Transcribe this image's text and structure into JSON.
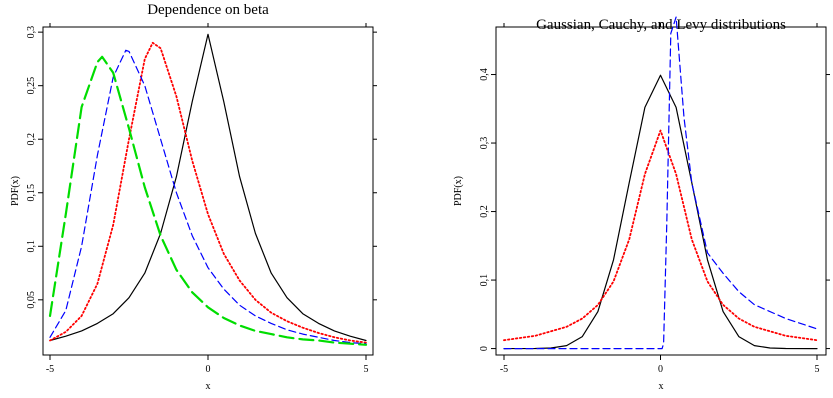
{
  "chart_data": [
    {
      "type": "line",
      "title": "Dependence on beta",
      "xlabel": "x",
      "ylabel": "PDF(x)",
      "xlim": [
        -5,
        5
      ],
      "ylim": [
        0.005,
        0.302
      ],
      "xticks": [
        -5,
        0,
        5
      ],
      "yticks": [
        0.05,
        0.1,
        0.15,
        0.2,
        0.25,
        0.3
      ],
      "ytick_labels": [
        "0,05",
        "0,1",
        "0,15",
        "0,2",
        "0,25",
        "0,3"
      ],
      "grid": false,
      "series": [
        {
          "color": "#000000",
          "style": "solid",
          "x": [
            -5,
            -4.5,
            -4,
            -3.5,
            -3,
            -2.5,
            -2,
            -1.5,
            -1,
            -0.5,
            0,
            0.5,
            1,
            1.5,
            2,
            2.5,
            3,
            3.5,
            4,
            4.5,
            5
          ],
          "y": [
            0.012,
            0.016,
            0.021,
            0.028,
            0.037,
            0.052,
            0.075,
            0.112,
            0.165,
            0.235,
            0.298,
            0.235,
            0.165,
            0.112,
            0.075,
            0.052,
            0.037,
            0.028,
            0.021,
            0.016,
            0.012
          ]
        },
        {
          "color": "#ff0000",
          "style": "dotted",
          "x": [
            -5,
            -4.5,
            -4,
            -3.5,
            -3,
            -2.5,
            -2,
            -1.75,
            -1.5,
            -1,
            -0.5,
            0,
            0.5,
            1,
            1.5,
            2,
            2.5,
            3,
            3.5,
            4,
            4.5,
            5
          ],
          "y": [
            0.012,
            0.02,
            0.035,
            0.065,
            0.12,
            0.2,
            0.275,
            0.29,
            0.285,
            0.24,
            0.18,
            0.13,
            0.093,
            0.068,
            0.05,
            0.038,
            0.03,
            0.024,
            0.019,
            0.015,
            0.012,
            0.01
          ]
        },
        {
          "color": "#0000ff",
          "style": "dashed",
          "x": [
            -5,
            -4.5,
            -4,
            -3.5,
            -3,
            -2.6,
            -2.5,
            -2,
            -1.5,
            -1,
            -0.5,
            0,
            0.5,
            1,
            1.5,
            2,
            2.5,
            3,
            3.5,
            4,
            4.5,
            5
          ],
          "y": [
            0.015,
            0.04,
            0.1,
            0.185,
            0.258,
            0.283,
            0.282,
            0.25,
            0.2,
            0.15,
            0.11,
            0.08,
            0.06,
            0.045,
            0.035,
            0.028,
            0.022,
            0.018,
            0.015,
            0.012,
            0.01,
            0.009
          ]
        },
        {
          "color": "#00dd00",
          "style": "longdash",
          "x": [
            -5,
            -4.5,
            -4,
            -3.5,
            -3.35,
            -3,
            -2.5,
            -2,
            -1.5,
            -1,
            -0.5,
            0,
            0.5,
            1,
            1.5,
            2,
            2.5,
            3,
            3.5,
            4,
            4.5,
            5
          ],
          "y": [
            0.035,
            0.13,
            0.23,
            0.272,
            0.277,
            0.262,
            0.21,
            0.155,
            0.11,
            0.078,
            0.057,
            0.043,
            0.033,
            0.026,
            0.021,
            0.018,
            0.015,
            0.013,
            0.012,
            0.01,
            0.009,
            0.008
          ]
        }
      ]
    },
    {
      "type": "line",
      "title": "Gaussian, Cauchy, and Levy distributions",
      "xlabel": "x",
      "ylabel": "PDF(x)",
      "xlim": [
        -5,
        5
      ],
      "ylim": [
        -0.005,
        0.465
      ],
      "xticks": [
        -5,
        0,
        5
      ],
      "yticks": [
        0,
        0.1,
        0.2,
        0.3,
        0.4
      ],
      "ytick_labels": [
        "0",
        "0,1",
        "0,2",
        "0,3",
        "0,4"
      ],
      "grid": false,
      "series": [
        {
          "color": "#000000",
          "style": "solid",
          "x": [
            -5,
            -4,
            -3.5,
            -3,
            -2.5,
            -2,
            -1.5,
            -1,
            -0.5,
            0,
            0.5,
            1,
            1.5,
            2,
            2.5,
            3,
            3.5,
            4,
            5
          ],
          "y": [
            0.0,
            0.0001,
            0.0009,
            0.0044,
            0.0175,
            0.054,
            0.1295,
            0.242,
            0.352,
            0.399,
            0.352,
            0.242,
            0.1295,
            0.054,
            0.0175,
            0.0044,
            0.0009,
            0.0001,
            0.0
          ]
        },
        {
          "color": "#ff0000",
          "style": "dotted",
          "x": [
            -5,
            -4,
            -3,
            -2.5,
            -2,
            -1.5,
            -1,
            -0.5,
            0,
            0.5,
            1,
            1.5,
            2,
            2.5,
            3,
            4,
            5
          ],
          "y": [
            0.0122,
            0.0187,
            0.0318,
            0.0439,
            0.0637,
            0.0979,
            0.1592,
            0.2546,
            0.3183,
            0.2546,
            0.1592,
            0.0979,
            0.0637,
            0.0439,
            0.0318,
            0.0187,
            0.0122
          ]
        },
        {
          "color": "#0000ff",
          "style": "dashed",
          "x": [
            -5,
            0,
            0.05,
            0.1,
            0.2,
            0.33,
            0.5,
            0.75,
            1,
            1.5,
            2,
            2.5,
            3,
            4,
            5
          ],
          "y": [
            0.0,
            0.0,
            0.0,
            0.0074,
            0.1838,
            0.46,
            0.4839,
            0.3373,
            0.242,
            0.1396,
            0.1098,
            0.0831,
            0.064,
            0.0439,
            0.0287
          ]
        }
      ]
    }
  ]
}
